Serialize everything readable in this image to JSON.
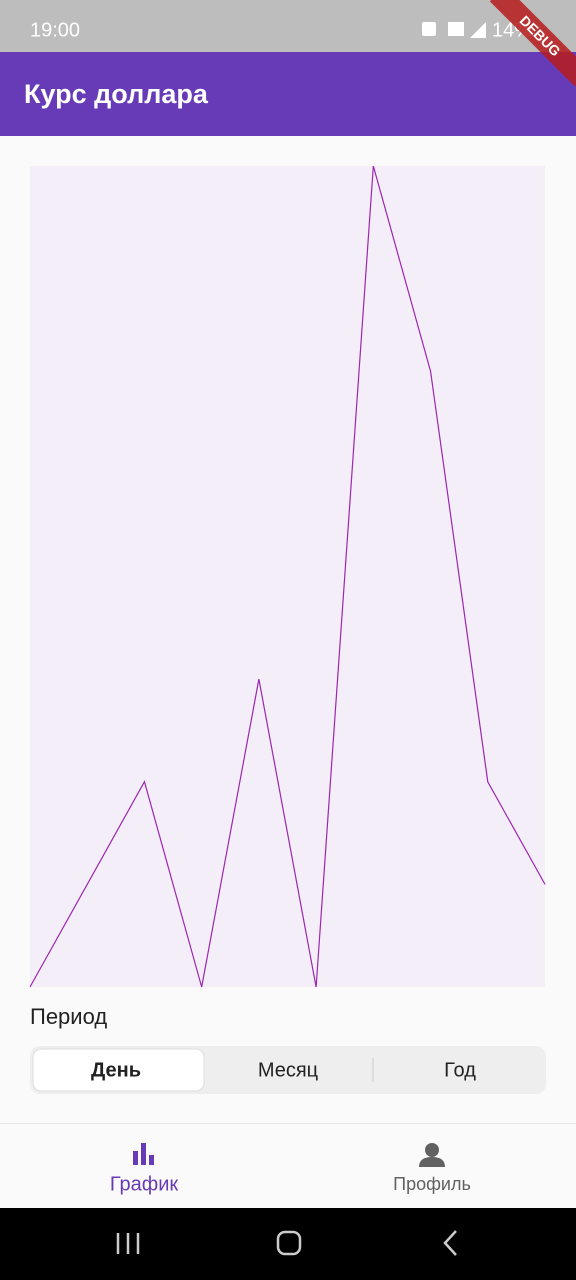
{
  "status_bar": {
    "time": "19:00",
    "battery": "14%"
  },
  "debug_banner": "DEBUG",
  "app_bar": {
    "title": "Курс доллара"
  },
  "chart_data": {
    "type": "line",
    "x": [
      0,
      2,
      3,
      4,
      5,
      6,
      7,
      8,
      9
    ],
    "series": [
      {
        "color": "#9c27b0",
        "values": [
          0,
          2,
          0,
          3,
          0,
          8,
          6,
          2,
          1
        ]
      }
    ],
    "xlim": [
      0,
      9
    ],
    "ylim": [
      0,
      8
    ],
    "background": "#f3eef8"
  },
  "period": {
    "label": "Период",
    "options": [
      "День",
      "Месяц",
      "Год"
    ],
    "selected": 0
  },
  "bottom_nav": {
    "items": [
      "График",
      "Профиль"
    ],
    "selected": 0
  }
}
